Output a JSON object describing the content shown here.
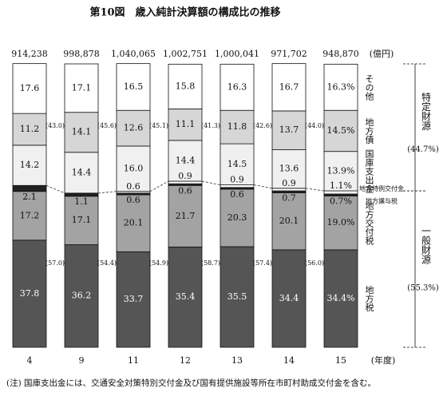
{
  "chart_data": {
    "type": "stacked_bar_100",
    "title": "第10図　歳入純計決算額の構成比の推移",
    "unit_label": "(億円)",
    "x_label": "(年度)",
    "categories": [
      "4",
      "9",
      "11",
      "12",
      "13",
      "14",
      "15"
    ],
    "totals": [
      914238,
      998878,
      1040065,
      1002751,
      1000041,
      971702,
      948870
    ],
    "totals_labels": [
      "914,238",
      "998,878",
      "1,040,065",
      "1,002,751",
      "1,000,041",
      "971,702",
      "948,870"
    ],
    "series": [
      {
        "name": "地方税",
        "color": "#555555",
        "values": [
          37.8,
          36.2,
          33.7,
          35.4,
          35.5,
          34.4,
          34.4
        ],
        "value_labels": [
          "37.8",
          "36.2",
          "33.7",
          "35.4",
          "35.5",
          "34.4",
          "34.4%"
        ]
      },
      {
        "name": "地方交付税",
        "color": "#a3a3a3",
        "values": [
          17.2,
          17.1,
          20.1,
          21.7,
          20.3,
          20.1,
          19.0
        ],
        "value_labels": [
          "17.2",
          "17.1",
          "20.1",
          "21.7",
          "20.3",
          "20.1",
          "19.0%"
        ]
      },
      {
        "name": "地方譲与税",
        "color": "#222222",
        "values": [
          2.1,
          1.1,
          0.6,
          0.6,
          0.6,
          0.7,
          0.7
        ],
        "value_labels": [
          "2.1",
          "1.1",
          "0.6",
          "0.6",
          "0.6",
          "0.7",
          "0.7%"
        ]
      },
      {
        "name": "地方特例交付金",
        "color": "#ffffff",
        "values": [
          null,
          null,
          0.6,
          0.9,
          0.9,
          0.9,
          1.1
        ],
        "value_labels": [
          null,
          null,
          "0.6",
          "0.9",
          "0.9",
          "0.9",
          "1.1%"
        ]
      },
      {
        "name": "国庫支出金",
        "color": "#f0f0f0",
        "values": [
          14.2,
          14.4,
          16.0,
          14.4,
          14.5,
          13.6,
          13.9
        ],
        "value_labels": [
          "14.2",
          "14.4",
          "16.0",
          "14.4",
          "14.5",
          "13.6",
          "13.9%"
        ]
      },
      {
        "name": "地方債",
        "color": "#d6d6d6",
        "values": [
          11.2,
          14.1,
          12.6,
          11.1,
          11.8,
          13.7,
          14.5
        ],
        "value_labels": [
          "11.2",
          "14.1",
          "12.6",
          "11.1",
          "11.8",
          "13.7",
          "14.5%"
        ]
      },
      {
        "name": "その他",
        "color": "#ffffff",
        "values": [
          17.6,
          17.1,
          16.5,
          15.8,
          16.3,
          16.7,
          16.3
        ],
        "value_labels": [
          "17.6",
          "17.1",
          "16.5",
          "15.8",
          "16.3",
          "16.7",
          "16.3%"
        ]
      }
    ],
    "specific_revenue": {
      "name": "特定財源",
      "values": [
        43.0,
        45.6,
        45.1,
        41.3,
        42.6,
        44.0,
        44.7
      ],
      "value_labels": [
        "(43.0)",
        "(45.6)",
        "(45.1)",
        "(41.3)",
        "(42.6)",
        "(44.0)",
        "(44.7%)"
      ]
    },
    "general_revenue": {
      "name": "一般財源",
      "values": [
        57.0,
        54.4,
        54.9,
        58.7,
        57.4,
        56.0,
        55.3
      ],
      "value_labels": [
        "(57.0)",
        "(54.4)",
        "(54.9)",
        "(58.7)",
        "(57.4)",
        "(56.0)",
        "(55.3%)"
      ]
    },
    "note": "(注)  国庫支出金には、交通安全対策特別交付金及び国有提供施設等所在市町村助成交付金を含む。"
  }
}
